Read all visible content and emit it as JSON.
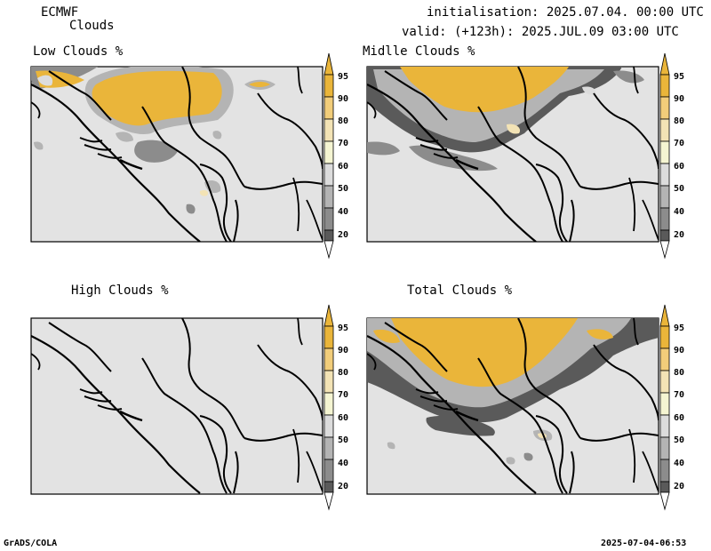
{
  "header": {
    "model": "ECMWF",
    "product": "Clouds",
    "initialisation": "initialisation: 2025.07.04. 00:00 UTC",
    "valid": "valid: (+123h): 2025.JUL.09 03:00 UTC"
  },
  "panels": [
    {
      "title": "Low Clouds %"
    },
    {
      "title": "Midlle Clouds %"
    },
    {
      "title": "High Clouds %"
    },
    {
      "title": "Total Clouds %"
    }
  ],
  "colorbar": {
    "levels": [
      "95",
      "90",
      "80",
      "70",
      "60",
      "50",
      "40",
      "20"
    ],
    "colors": [
      "#eab53a",
      "#f2cd7a",
      "#f3e3b5",
      "#f5f5d2",
      "#dcdcdc",
      "#b4b4b4",
      "#8c8c8c",
      "#5a5a5a",
      "#ffffff"
    ]
  },
  "footer": {
    "left": "GrADS/COLA",
    "right": "2025-07-04-06:53"
  }
}
